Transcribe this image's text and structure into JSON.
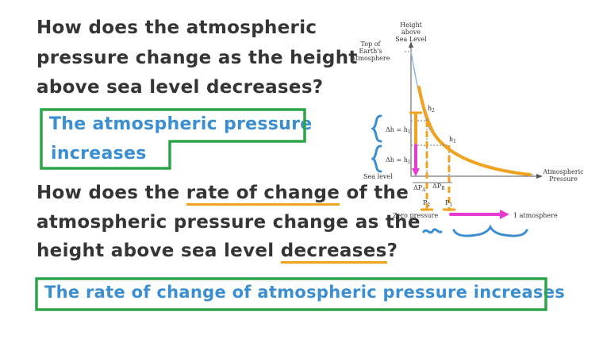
{
  "question1": {
    "line1": "How does the atmospheric",
    "line2": "pressure change as the height",
    "line3": "above sea level decreases?"
  },
  "answer1": {
    "line1": "The atmospheric pressure",
    "line2": "increases"
  },
  "question2": {
    "line1_a": "How does the ",
    "line1_b": "rate of change",
    "line1_c": " of the",
    "line2": "atmospheric pressure change as the",
    "line3_a": "height above sea level ",
    "line3_b": "decreases",
    "line3_c": "?"
  },
  "answer2": "The rate of change of atmospheric pressure increases",
  "diagram": {
    "y_axis_label_1": "Height",
    "y_axis_label_2": "above",
    "y_axis_label_3": "Sea Level",
    "top_label_1": "Top of",
    "top_label_2": "Earth's",
    "top_label_3": "Atmosphere",
    "x_axis_label_1": "Atmospheric",
    "x_axis_label_2": "Pressure",
    "sea_level": "Sea level",
    "h2": "h",
    "h2_sub": "2",
    "h1": "h",
    "h1_sub": "1",
    "dh_upper": "Δh = h",
    "dh_upper_sub": "1",
    "dh_lower": "Δh = h",
    "dh_lower_sub": "1",
    "dpa": "ΔP",
    "dpa_sub": "A",
    "dpb": "ΔP",
    "dpb_sub": "B",
    "p2": "P",
    "p2_sub": "2",
    "p1": "P",
    "p1_sub": "1",
    "zero_pressure": "Zero pressure",
    "one_atmosphere": "1 atmosphere"
  },
  "colors": {
    "orange": "#f0a320",
    "magenta": "#e63cd2",
    "blue": "#3b8fd0",
    "green": "#2ea44a",
    "curve_blue": "#8ab8e0"
  }
}
